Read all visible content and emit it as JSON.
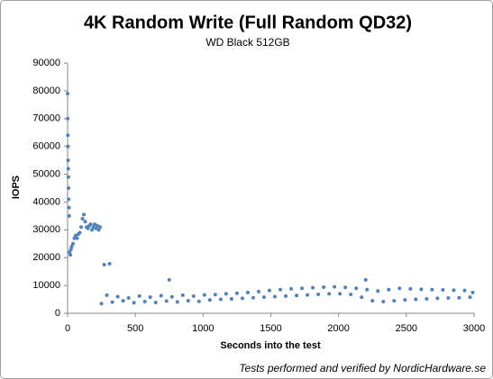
{
  "chart_data": {
    "type": "scatter",
    "title": "4K Random Write (Full Random QD32)",
    "subtitle": "WD Black 512GB",
    "x_label": "Seconds into the test",
    "y_label": "IOPS",
    "footnote": "Tests performed and verified by NordicHardware.se",
    "color": "#4f81bd",
    "xlim": [
      0,
      3000
    ],
    "xticks": [
      0,
      500,
      1000,
      1500,
      2000,
      2500,
      3000
    ],
    "ylim": [
      0,
      90000
    ],
    "yticks": [
      0,
      10000,
      20000,
      30000,
      40000,
      50000,
      60000,
      70000,
      80000,
      90000
    ],
    "grid": false,
    "x": [
      0,
      1,
      2,
      3,
      4,
      5,
      6,
      7,
      8,
      10,
      12,
      15,
      20,
      25,
      30,
      40,
      50,
      60,
      70,
      80,
      90,
      100,
      110,
      120,
      130,
      140,
      150,
      160,
      170,
      180,
      190,
      200,
      210,
      220,
      230,
      240,
      270,
      310,
      250,
      290,
      330,
      370,
      410,
      450,
      490,
      530,
      570,
      610,
      650,
      690,
      730,
      750,
      770,
      810,
      850,
      890,
      930,
      970,
      1010,
      1050,
      1090,
      1130,
      1170,
      1210,
      1250,
      1290,
      1330,
      1370,
      1410,
      1450,
      1490,
      1530,
      1570,
      1610,
      1650,
      1690,
      1730,
      1770,
      1810,
      1850,
      1890,
      1930,
      1970,
      2010,
      2050,
      2090,
      2130,
      2170,
      2200,
      2210,
      2250,
      2290,
      2330,
      2370,
      2410,
      2450,
      2490,
      2530,
      2570,
      2610,
      2650,
      2690,
      2730,
      2770,
      2810,
      2850,
      2890,
      2930,
      2970,
      2990
    ],
    "values": [
      79000,
      70000,
      64000,
      60000,
      55000,
      52000,
      49000,
      45000,
      41000,
      38000,
      35000,
      22000,
      21000,
      23000,
      24000,
      25000,
      27000,
      28000,
      27000,
      28500,
      29000,
      31000,
      34000,
      35500,
      33000,
      31000,
      30500,
      31500,
      32000,
      30000,
      31000,
      32000,
      30500,
      31500,
      30000,
      31000,
      17500,
      17800,
      3500,
      6500,
      4000,
      6000,
      4500,
      5500,
      3800,
      6200,
      4200,
      5800,
      3900,
      6300,
      4400,
      12000,
      5900,
      4100,
      6500,
      4500,
      6200,
      4300,
      6600,
      4800,
      6700,
      5000,
      7000,
      5200,
      7200,
      5400,
      7500,
      5600,
      7800,
      5800,
      8200,
      6000,
      8500,
      6200,
      8800,
      6400,
      9000,
      6600,
      9200,
      6800,
      9400,
      7000,
      9500,
      7000,
      9300,
      6800,
      9000,
      5800,
      12000,
      8500,
      4500,
      8000,
      4200,
      8500,
      4500,
      9000,
      4800,
      8800,
      5000,
      8600,
      5200,
      8500,
      5400,
      8400,
      5500,
      8300,
      5600,
      8200,
      5800,
      7500
    ]
  }
}
